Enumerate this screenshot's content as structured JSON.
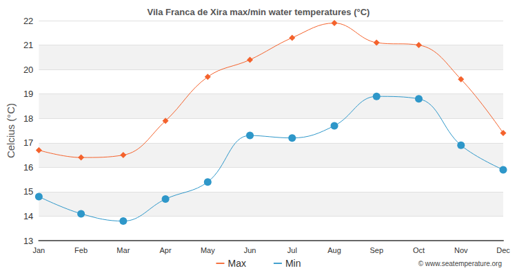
{
  "chart_data": {
    "type": "line",
    "title": "Vila Franca de Xira max/min water temperatures (°C)",
    "y_label": "Celcius (°C)",
    "categories": [
      "Jan",
      "Feb",
      "Mar",
      "Apr",
      "May",
      "Jun",
      "Jul",
      "Aug",
      "Sep",
      "Oct",
      "Nov",
      "Dec"
    ],
    "series": [
      {
        "name": "Max",
        "color": "#f4622c",
        "marker": "diamond",
        "line_style": "solid",
        "values": [
          16.7,
          16.4,
          16.5,
          17.9,
          19.7,
          20.4,
          21.3,
          21.9,
          21.1,
          21.0,
          19.6,
          17.4
        ]
      },
      {
        "name": "Min",
        "color": "#2e97c9",
        "marker": "circle",
        "line_style": "solid",
        "values": [
          14.8,
          14.1,
          13.8,
          14.7,
          15.4,
          17.3,
          17.2,
          17.7,
          18.9,
          18.8,
          16.9,
          15.9
        ]
      }
    ],
    "ylim": [
      13,
      22
    ],
    "yticks": [
      13,
      14,
      15,
      16,
      17,
      18,
      19,
      20,
      21,
      22
    ],
    "grid": true,
    "legend": "bottom",
    "annotations": [
      "© www.seatemperature.org"
    ]
  }
}
